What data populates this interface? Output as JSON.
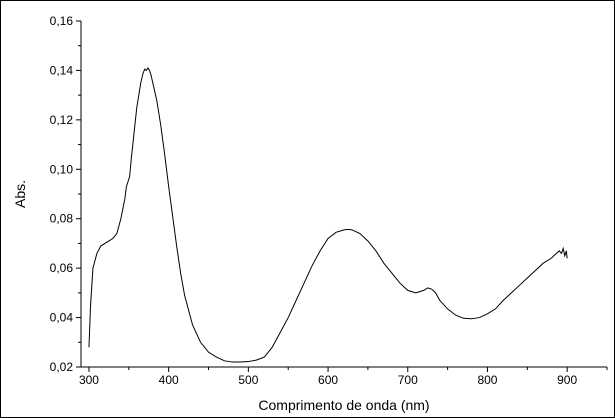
{
  "chart_data": {
    "type": "line",
    "title": "",
    "xlabel": "Comprimento de onda (nm)",
    "ylabel": "Abs.",
    "xlim": [
      290,
      950
    ],
    "ylim": [
      0.02,
      0.16
    ],
    "x_ticks": [
      300,
      400,
      500,
      600,
      700,
      800,
      900
    ],
    "x_tick_labels": [
      "300",
      "400",
      "500",
      "600",
      "700",
      "800",
      "900"
    ],
    "y_ticks": [
      0.02,
      0.04,
      0.06,
      0.08,
      0.1,
      0.12,
      0.14,
      0.16
    ],
    "y_tick_labels": [
      "0,02",
      "0,04",
      "0,06",
      "0,08",
      "0,10",
      "0,12",
      "0,14",
      "0,16"
    ],
    "grid": false,
    "legend": "none",
    "line_color": "#000000",
    "series": [
      {
        "x": [
          300,
          302,
          305,
          310,
          315,
          320,
          325,
          330,
          335,
          340,
          345,
          347,
          349,
          351,
          353,
          356,
          360,
          365,
          368,
          370,
          372,
          374,
          376,
          378,
          380,
          385,
          390,
          395,
          400,
          405,
          410,
          415,
          420,
          430,
          440,
          450,
          460,
          470,
          480,
          490,
          500,
          510,
          520,
          530,
          540,
          550,
          560,
          570,
          580,
          590,
          600,
          610,
          620,
          625,
          630,
          640,
          650,
          660,
          670,
          680,
          690,
          700,
          710,
          720,
          725,
          730,
          735,
          740,
          750,
          760,
          770,
          780,
          790,
          800,
          810,
          820,
          830,
          840,
          850,
          860,
          870,
          880,
          885,
          890,
          893,
          895,
          897,
          899,
          900
        ],
        "y": [
          0.028,
          0.045,
          0.06,
          0.066,
          0.069,
          0.07,
          0.071,
          0.072,
          0.074,
          0.08,
          0.088,
          0.093,
          0.095,
          0.097,
          0.104,
          0.113,
          0.125,
          0.135,
          0.139,
          0.1405,
          0.14,
          0.141,
          0.14,
          0.138,
          0.135,
          0.128,
          0.118,
          0.106,
          0.093,
          0.081,
          0.069,
          0.058,
          0.049,
          0.037,
          0.03,
          0.026,
          0.024,
          0.0225,
          0.022,
          0.022,
          0.0222,
          0.0228,
          0.024,
          0.028,
          0.034,
          0.04,
          0.047,
          0.054,
          0.061,
          0.067,
          0.072,
          0.0745,
          0.0755,
          0.0757,
          0.0755,
          0.074,
          0.071,
          0.067,
          0.062,
          0.058,
          0.054,
          0.051,
          0.05,
          0.051,
          0.052,
          0.0515,
          0.05,
          0.047,
          0.0435,
          0.041,
          0.0397,
          0.0395,
          0.04,
          0.0415,
          0.0435,
          0.047,
          0.05,
          0.053,
          0.056,
          0.059,
          0.062,
          0.064,
          0.0655,
          0.067,
          0.066,
          0.068,
          0.065,
          0.067,
          0.064
        ]
      }
    ]
  }
}
